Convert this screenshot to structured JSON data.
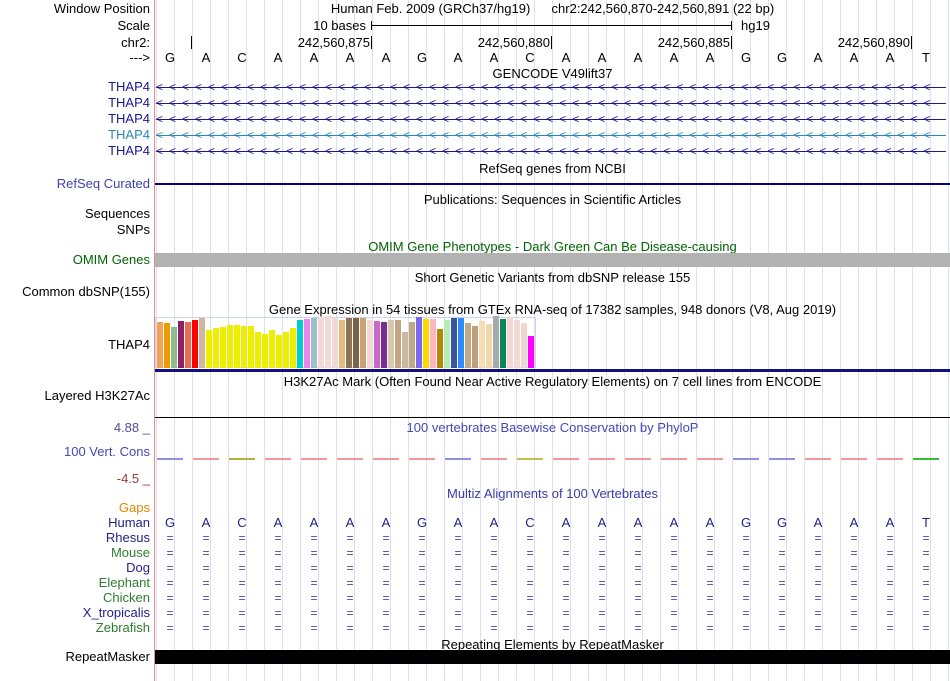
{
  "header": {
    "window_position_label": "Window Position",
    "assembly_title": "Human Feb. 2009 (GRCh37/hg19)",
    "position_title": "chr2:242,560,870-242,560,891 (22 bp)",
    "scale_label": "Scale",
    "scale_value": "10 bases",
    "scale_genome": "hg19",
    "chrom_label": "chr2:",
    "strand_label": "--->",
    "ruler_ticks": [
      {
        "label": "",
        "k": 1
      },
      {
        "label": "242,560,875",
        "k": 6
      },
      {
        "label": "242,560,880",
        "k": 11
      },
      {
        "label": "242,560,885",
        "k": 16
      },
      {
        "label": "242,560,890",
        "k": 21
      }
    ]
  },
  "sequence": [
    "G",
    "A",
    "C",
    "A",
    "A",
    "A",
    "A",
    "G",
    "A",
    "A",
    "C",
    "A",
    "A",
    "A",
    "A",
    "A",
    "G",
    "G",
    "A",
    "A",
    "A",
    "T"
  ],
  "tracks": {
    "gencode": {
      "title": "GENCODE V49lift37",
      "genes": [
        {
          "label": "THAP4",
          "color": "#1a1a8c"
        },
        {
          "label": "THAP4",
          "color": "#1a1a8c"
        },
        {
          "label": "THAP4",
          "color": "#1a1a8c"
        },
        {
          "label": "THAP4",
          "color": "#2e86b8"
        },
        {
          "label": "THAP4",
          "color": "#1a1a8c"
        }
      ]
    },
    "refseq": {
      "title": "RefSeq genes from NCBI",
      "label": "RefSeq Curated",
      "label_color": "#4040b0",
      "line_color": "#000080"
    },
    "publications": {
      "title": "Publications: Sequences in Scientific Articles",
      "label_sequences": "Sequences",
      "label_snps": "SNPs"
    },
    "omim": {
      "title": "OMIM Gene Phenotypes - Dark Green Can Be Disease-causing",
      "label": "OMIM Genes",
      "title_color": "#006400",
      "bar_color": "#b2b2b2"
    },
    "dbsnp": {
      "title": "Short Genetic Variants from dbSNP release 155",
      "label": "Common dbSNP(155)"
    },
    "gtex": {
      "label": "THAP4",
      "baseline_color": "#10107e"
    },
    "h3k27ac": {
      "title": "H3K27Ac Mark (Often Found Near Active Regulatory Elements) on 7 cell lines from ENCODE",
      "label": "Layered H3K27Ac"
    },
    "phylop": {
      "label": "100 Vert. Cons",
      "max_label": "4.88 _",
      "min_label": "-4.5 _",
      "label_color": "#4646b4",
      "max_color": "#52528f",
      "min_color": "#9e3a3a"
    },
    "multiz": {
      "title": "Multiz Alignments of 100 Vertebrates",
      "title_color": "#3939a8",
      "align_glyph": "=",
      "align_color": "#4848a0",
      "species": [
        {
          "name": "Gaps",
          "color": "#dd8800",
          "content": "none"
        },
        {
          "name": "Human",
          "color": "#22228c",
          "content": "bases"
        },
        {
          "name": "Rhesus",
          "color": "#22228c",
          "content": "align"
        },
        {
          "name": "Mouse",
          "color": "#2e7d2e",
          "content": "align"
        },
        {
          "name": "Dog",
          "color": "#22228c",
          "content": "align"
        },
        {
          "name": "Elephant",
          "color": "#2e7d2e",
          "content": "align"
        },
        {
          "name": "Chicken",
          "color": "#2e7d2e",
          "content": "align"
        },
        {
          "name": "X_tropicalis",
          "color": "#22228c",
          "content": "align"
        },
        {
          "name": "Zebrafish",
          "color": "#2e7d2e",
          "content": "align"
        }
      ]
    },
    "repeatmasker": {
      "title": "Repeating Elements by RepeatMasker",
      "label": "RepeatMasker",
      "bar_color": "#000000"
    }
  },
  "chart_data": [
    {
      "type": "bar",
      "title": "Gene Expression in 54 tissues from GTEx RNA-seq of 17382 samples, 948 donors (V8, Aug 2019)",
      "gene": "THAP4",
      "categories": null,
      "note": "54 GTEx tissue bars, unlabeled in image; values are approximate bar heights in pixels (no y-axis shown); colors follow the GTEx tissue palette",
      "values": [
        46,
        45,
        41,
        47,
        46,
        48,
        50,
        38,
        40,
        41,
        43,
        43,
        42,
        42,
        36,
        34,
        38,
        33,
        36,
        40,
        48,
        49,
        50,
        51,
        52,
        50,
        48,
        50,
        50,
        50,
        48,
        47,
        46,
        48,
        48,
        36,
        46,
        51,
        49,
        49,
        39,
        48,
        50,
        50,
        45,
        42,
        47,
        44,
        52,
        49,
        51,
        48,
        45,
        32
      ],
      "colors": [
        "#F5A259",
        "#EE9A00",
        "#8FBC8F",
        "#8B2265",
        "#EE6A50",
        "#FF0000",
        "#CDB79E",
        "#EEEE00",
        "#EEEE00",
        "#EEEE00",
        "#EEEE00",
        "#EEEE00",
        "#EEEE00",
        "#EEEE00",
        "#EEEE00",
        "#EEEE00",
        "#EEEE00",
        "#EEEE00",
        "#EEEE00",
        "#EEEE00",
        "#00CDCD",
        "#EE82EE",
        "#9AC0CD",
        "#F2D9D5",
        "#F2D9D5",
        "#F2D9D5",
        "#E3BC7E",
        "#8B7355",
        "#7D6246",
        "#C9A178",
        "#F2D9D5",
        "#C969C9",
        "#7A2E8E",
        "#D9C6AE",
        "#C3A584",
        "#CDB79E",
        "#C2A986",
        "#7B68EE",
        "#FFD700",
        "#FFB6C1",
        "#B8860B",
        "#B4EEB4",
        "#3A54A4",
        "#2E8BFF",
        "#C2A986",
        "#BFA07C",
        "#F5DEB3",
        "#EED8AE",
        "#A9A9A9",
        "#0A8754",
        "#F2D9D5",
        "#F2D9D5",
        "#F0D5D0",
        "#FF00FF"
      ]
    },
    {
      "type": "line",
      "title": "100 vertebrates Basewise Conservation by PhyloP",
      "ylim": [
        -4.5,
        4.88
      ],
      "note": "per-base PhyloP scores near 0 for all 22 bases, drawn as short colored dashes",
      "values": [
        0,
        0,
        0,
        0,
        0,
        0,
        0,
        0,
        0,
        0,
        0,
        0,
        0,
        0,
        0,
        0,
        0,
        0,
        0,
        0,
        0,
        0
      ],
      "point_colors": [
        "#9090E0",
        "#F09898",
        "#B0B040",
        "#F09898",
        "#F09898",
        "#F09898",
        "#F09898",
        "#F09898",
        "#9090E0",
        "#F09898",
        "#C0C050",
        "#F09898",
        "#F09898",
        "#F09898",
        "#F09898",
        "#F09898",
        "#9090E0",
        "#9090E0",
        "#F09898",
        "#F09898",
        "#F09898",
        "#30C030"
      ]
    }
  ]
}
